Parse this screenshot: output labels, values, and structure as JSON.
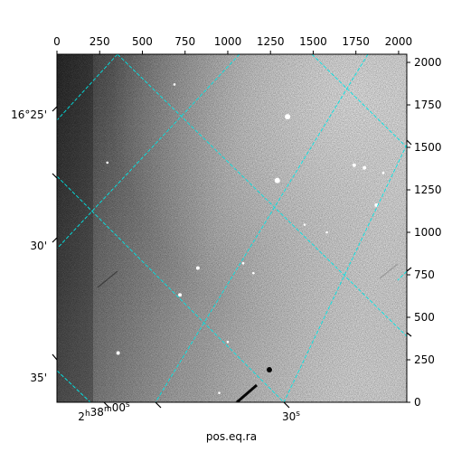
{
  "chart_data": {
    "type": "heatmap",
    "title": "",
    "xlabel": "pos.eq.ra",
    "ylabel": "",
    "pixel_axes": {
      "xlim": [
        0,
        2048
      ],
      "ylim": [
        0,
        2048
      ],
      "x_ticks": [
        0,
        250,
        500,
        750,
        1000,
        1250,
        1500,
        1750,
        2000
      ],
      "y_ticks": [
        0,
        250,
        500,
        750,
        1000,
        1250,
        1500,
        1750,
        2000
      ]
    },
    "ra_ticks": [
      {
        "label_main": "2",
        "sup1": "h",
        "mid": "38",
        "sup2": "m",
        "tail": "00",
        "sup3": "s"
      },
      {
        "label_main": "30",
        "sup1": "s",
        "mid": "",
        "sup2": "",
        "tail": "",
        "sup3": ""
      }
    ],
    "dec_ticks": [
      "16°25'",
      "30'",
      "35'"
    ],
    "grid": true,
    "grid_color": "#00e5e5",
    "colormap": "gray",
    "background_gradient": {
      "dark_side": "left",
      "bright_side": "right"
    },
    "stars": [
      {
        "x": 1350,
        "y": 1680,
        "mag": "bright"
      },
      {
        "x": 1290,
        "y": 1305,
        "mag": "bright"
      },
      {
        "x": 1800,
        "y": 1380,
        "mag": "medium"
      },
      {
        "x": 1740,
        "y": 1395,
        "mag": "medium"
      },
      {
        "x": 1450,
        "y": 1045,
        "mag": "faint"
      },
      {
        "x": 1090,
        "y": 818,
        "mag": "faint"
      },
      {
        "x": 825,
        "y": 790,
        "mag": "medium"
      },
      {
        "x": 720,
        "y": 632,
        "mag": "medium"
      },
      {
        "x": 1150,
        "y": 760,
        "mag": "faint"
      },
      {
        "x": 1870,
        "y": 1160,
        "mag": "medium"
      },
      {
        "x": 688,
        "y": 1870,
        "mag": "faint"
      },
      {
        "x": 295,
        "y": 1410,
        "mag": "faint"
      },
      {
        "x": 358,
        "y": 290,
        "mag": "medium"
      },
      {
        "x": 1250,
        "y": 195,
        "mag": "medium"
      },
      {
        "x": 950,
        "y": 55,
        "mag": "faint"
      },
      {
        "x": 1000,
        "y": 355,
        "mag": "faint"
      },
      {
        "x": 1580,
        "y": 1000,
        "mag": "faint"
      },
      {
        "x": 1910,
        "y": 1350,
        "mag": "faint"
      }
    ]
  }
}
